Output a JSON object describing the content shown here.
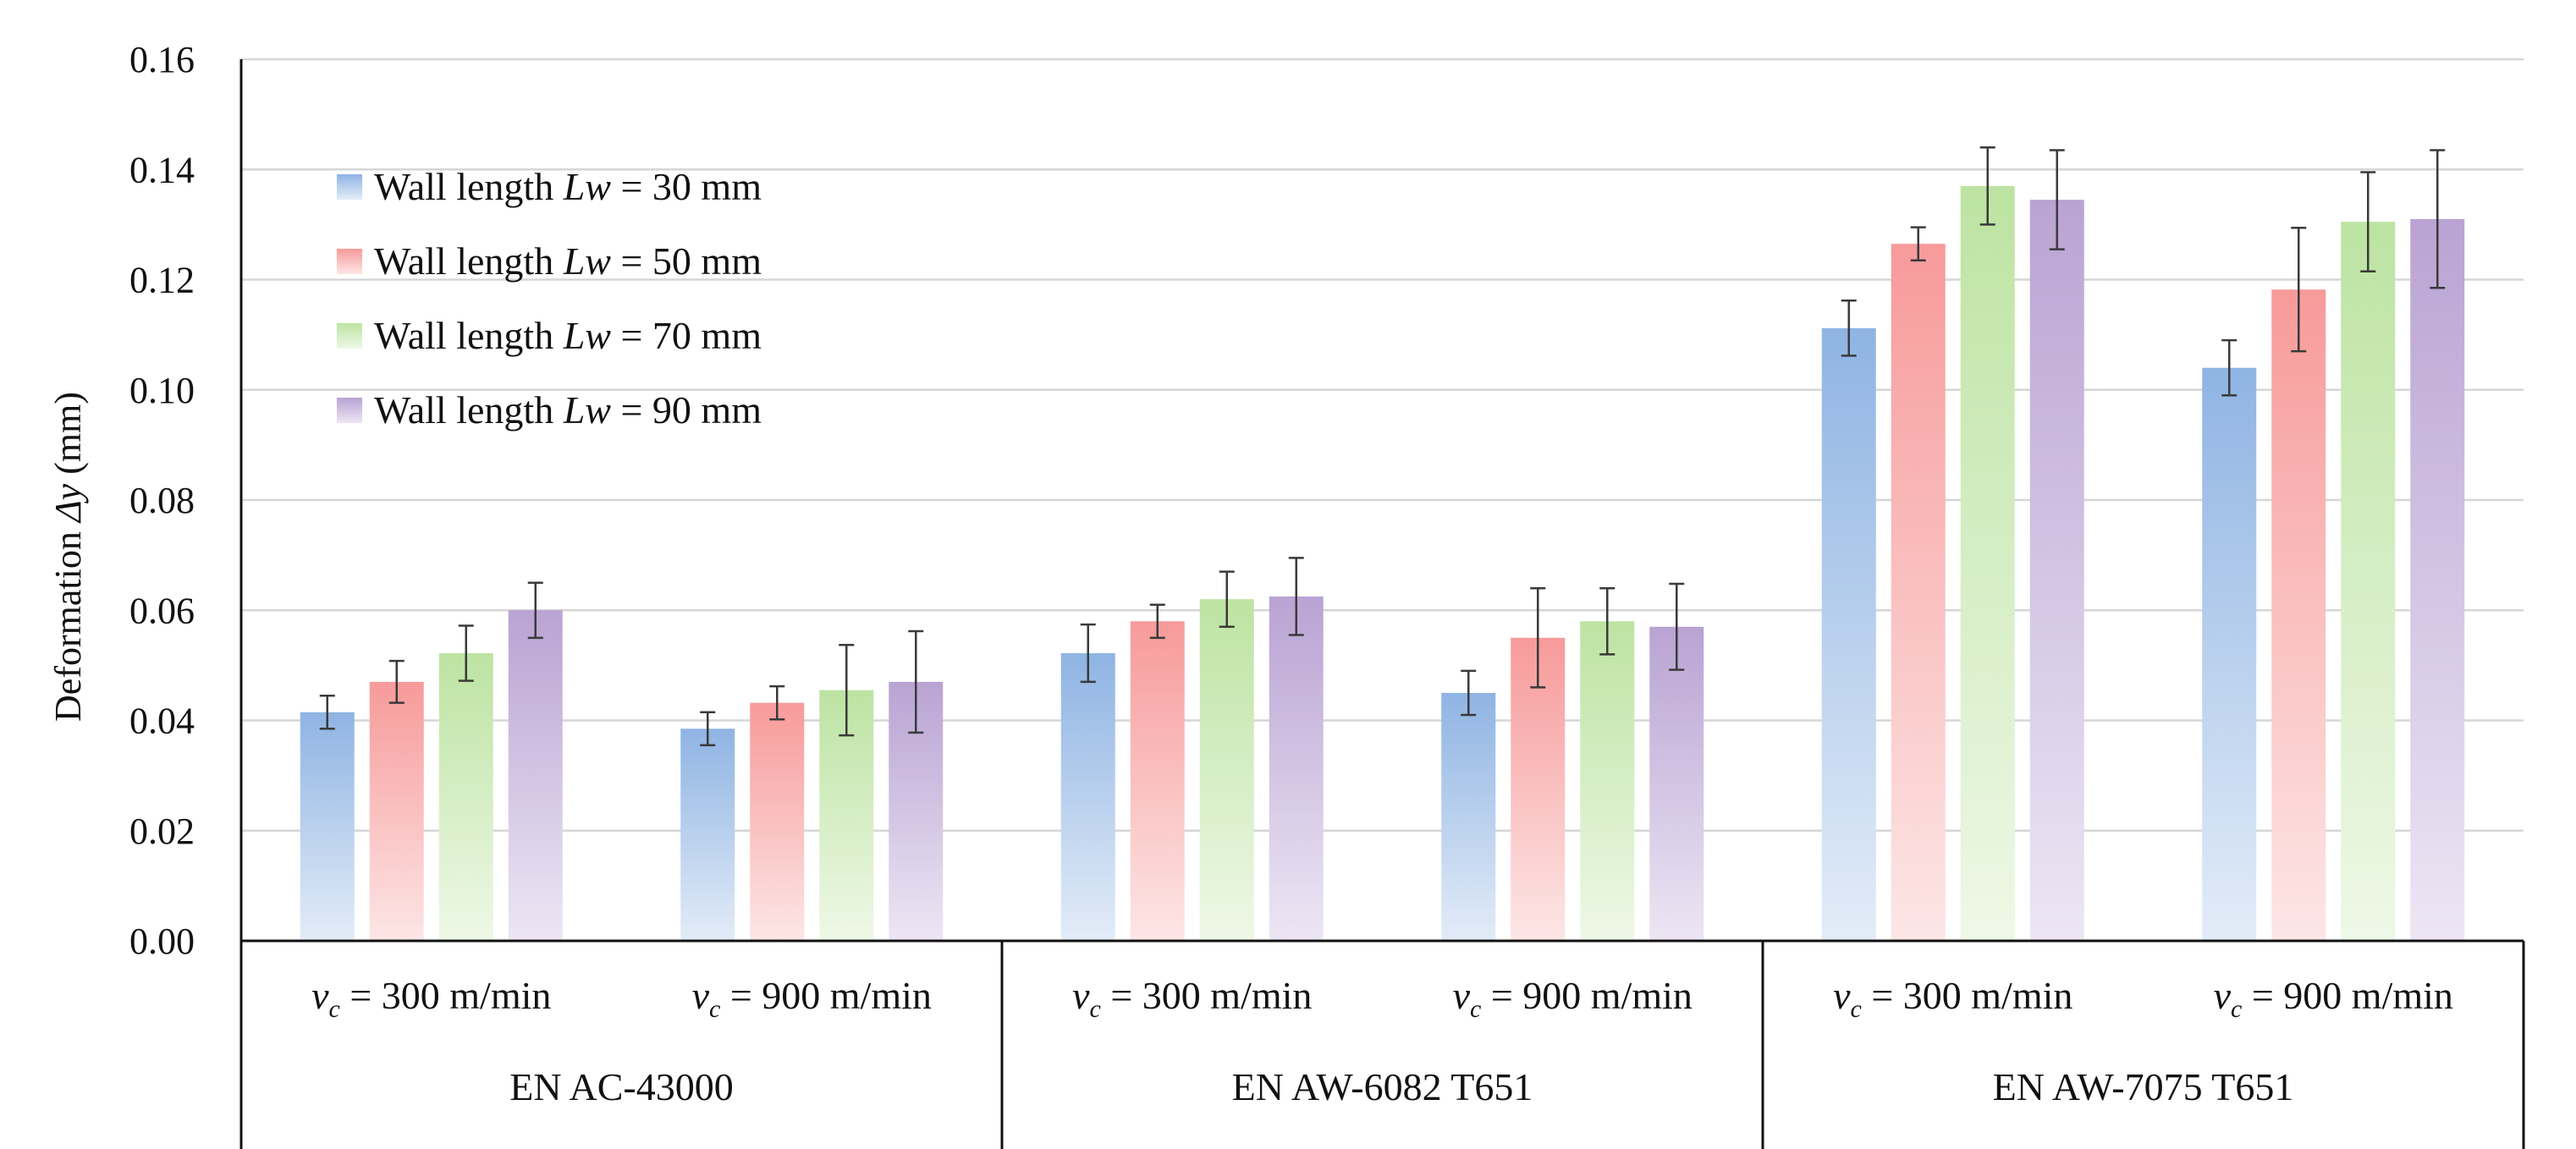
{
  "chart_data": {
    "type": "bar",
    "ylabel_main": "Deformation ",
    "ylabel_var": "Δy",
    "ylabel_unit": " (mm)",
    "ylim": [
      0,
      0.16
    ],
    "yticks": [
      "0.00",
      "0.02",
      "0.04",
      "0.06",
      "0.08",
      "0.10",
      "0.12",
      "0.14",
      "0.16"
    ],
    "grid": true,
    "legend_position": "top-left",
    "groups": [
      {
        "material": "EN AC-43000",
        "subgroups": [
          {
            "var": "v",
            "sub": "c",
            "label": " = 300 m/min",
            "values": [
              0.0415,
              0.047,
              0.0522,
              0.06
            ],
            "errors": [
              0.003,
              0.0038,
              0.005,
              0.005
            ]
          },
          {
            "var": "v",
            "sub": "c",
            "label": " = 900 m/min",
            "values": [
              0.0385,
              0.0432,
              0.0455,
              0.047
            ],
            "errors": [
              0.003,
              0.003,
              0.0082,
              0.0092
            ]
          }
        ]
      },
      {
        "material": "EN AW-6082 T651",
        "subgroups": [
          {
            "var": "v",
            "sub": "c",
            "label": " = 300 m/min",
            "values": [
              0.0522,
              0.058,
              0.062,
              0.0625
            ],
            "errors": [
              0.0052,
              0.003,
              0.005,
              0.007
            ]
          },
          {
            "var": "v",
            "sub": "c",
            "label": " = 900 m/min",
            "values": [
              0.045,
              0.055,
              0.058,
              0.057
            ],
            "errors": [
              0.004,
              0.009,
              0.006,
              0.0078
            ]
          }
        ]
      },
      {
        "material": "EN AW-7075 T651",
        "subgroups": [
          {
            "var": "v",
            "sub": "c",
            "label": " = 300 m/min",
            "values": [
              0.1112,
              0.1265,
              0.137,
              0.1345
            ],
            "errors": [
              0.005,
              0.003,
              0.007,
              0.009
            ]
          },
          {
            "var": "v",
            "sub": "c",
            "label": " = 900 m/min",
            "values": [
              0.104,
              0.1182,
              0.1305,
              0.131
            ],
            "errors": [
              0.005,
              0.0112,
              0.009,
              0.0125
            ]
          }
        ]
      }
    ],
    "series": [
      {
        "prefix": "Wall length ",
        "var": "Lw",
        "suffix": " = 30 mm",
        "color_top": "#8fb4e3",
        "color_bottom": "#e3ecf8"
      },
      {
        "prefix": "Wall length ",
        "var": "Lw",
        "suffix": " = 50 mm",
        "color_top": "#f79a9a",
        "color_bottom": "#fde6e6"
      },
      {
        "prefix": "Wall length ",
        "var": "Lw",
        "suffix": " = 70 mm",
        "color_top": "#bde3a2",
        "color_bottom": "#eef8e7"
      },
      {
        "prefix": "Wall length ",
        "var": "Lw",
        "suffix": " = 90 mm",
        "color_top": "#b9a3d3",
        "color_bottom": "#ede6f4"
      }
    ]
  }
}
